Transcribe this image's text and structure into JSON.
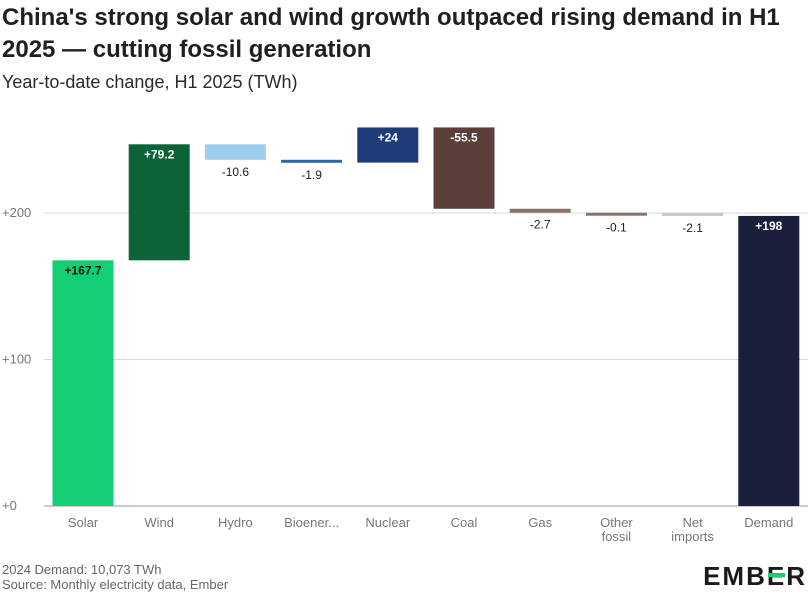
{
  "header": {
    "title": "China's strong solar and wind growth outpaced rising demand in H1 2025 — cutting fossil generation",
    "subtitle": "Year-to-date change, H1 2025 (TWh)"
  },
  "chart_data": {
    "type": "bar",
    "subtype": "waterfall",
    "title": "China's strong solar and wind growth outpaced rising demand in H1 2025 — cutting fossil generation",
    "subtitle": "Year-to-date change, H1 2025 (TWh)",
    "xlabel": "",
    "ylabel": "",
    "ylim": [
      0,
      270
    ],
    "yticks": [
      0,
      100,
      200
    ],
    "ytick_labels": [
      "+0",
      "+100",
      "+200"
    ],
    "grid": true,
    "categories": [
      {
        "label": [
          "Solar"
        ],
        "value": 167.7,
        "start": 0,
        "end": 167.7,
        "data_label": "+167.7",
        "color": "#13ce74",
        "label_color": "#111111",
        "label_inside": true
      },
      {
        "label": [
          "Wind"
        ],
        "value": 79.2,
        "start": 167.7,
        "end": 246.9,
        "data_label": "+79.2",
        "color": "#0b6337",
        "label_color": "#ffffff",
        "label_inside": true
      },
      {
        "label": [
          "Hydro"
        ],
        "value": -10.6,
        "start": 246.9,
        "end": 236.3,
        "data_label": "-10.6",
        "color": "#9fcdee",
        "label_color": "#222222",
        "label_inside": false
      },
      {
        "label": [
          "Bioener..."
        ],
        "value": -1.9,
        "start": 236.3,
        "end": 234.4,
        "data_label": "-1.9",
        "color": "#2c6aa6",
        "label_color": "#222222",
        "label_inside": false
      },
      {
        "label": [
          "Nuclear"
        ],
        "value": 24,
        "start": 234.4,
        "end": 258.4,
        "data_label": "+24",
        "color": "#1e3b7a",
        "label_color": "#ffffff",
        "label_inside": true
      },
      {
        "label": [
          "Coal"
        ],
        "value": -55.5,
        "start": 258.4,
        "end": 202.9,
        "data_label": "-55.5",
        "color": "#5b3f38",
        "label_color": "#ffffff",
        "label_inside": true
      },
      {
        "label": [
          "Gas"
        ],
        "value": -2.7,
        "start": 202.9,
        "end": 200.2,
        "data_label": "-2.7",
        "color": "#8a726b",
        "label_color": "#222222",
        "label_inside": false
      },
      {
        "label": [
          "Other",
          "fossil"
        ],
        "value": -0.1,
        "start": 200.2,
        "end": 200.1,
        "data_label": "-0.1",
        "color": "#8a726b",
        "label_color": "#222222",
        "label_inside": false
      },
      {
        "label": [
          "Net",
          "imports"
        ],
        "value": -2.1,
        "start": 200.1,
        "end": 198.0,
        "data_label": "-2.1",
        "color": "#c7c7c7",
        "label_color": "#222222",
        "label_inside": false
      },
      {
        "label": [
          "Demand"
        ],
        "value": 198,
        "start": 0,
        "end": 198,
        "data_label": "+198",
        "color": "#1b1f3b",
        "label_color": "#ffffff",
        "label_inside": true
      }
    ]
  },
  "footer": {
    "note": "2024 Demand: 10,073 TWh",
    "source": "Source: Monthly electricity data, Ember",
    "logo_text_a": "EMB",
    "logo_text_b": "E",
    "logo_text_c": "R"
  }
}
